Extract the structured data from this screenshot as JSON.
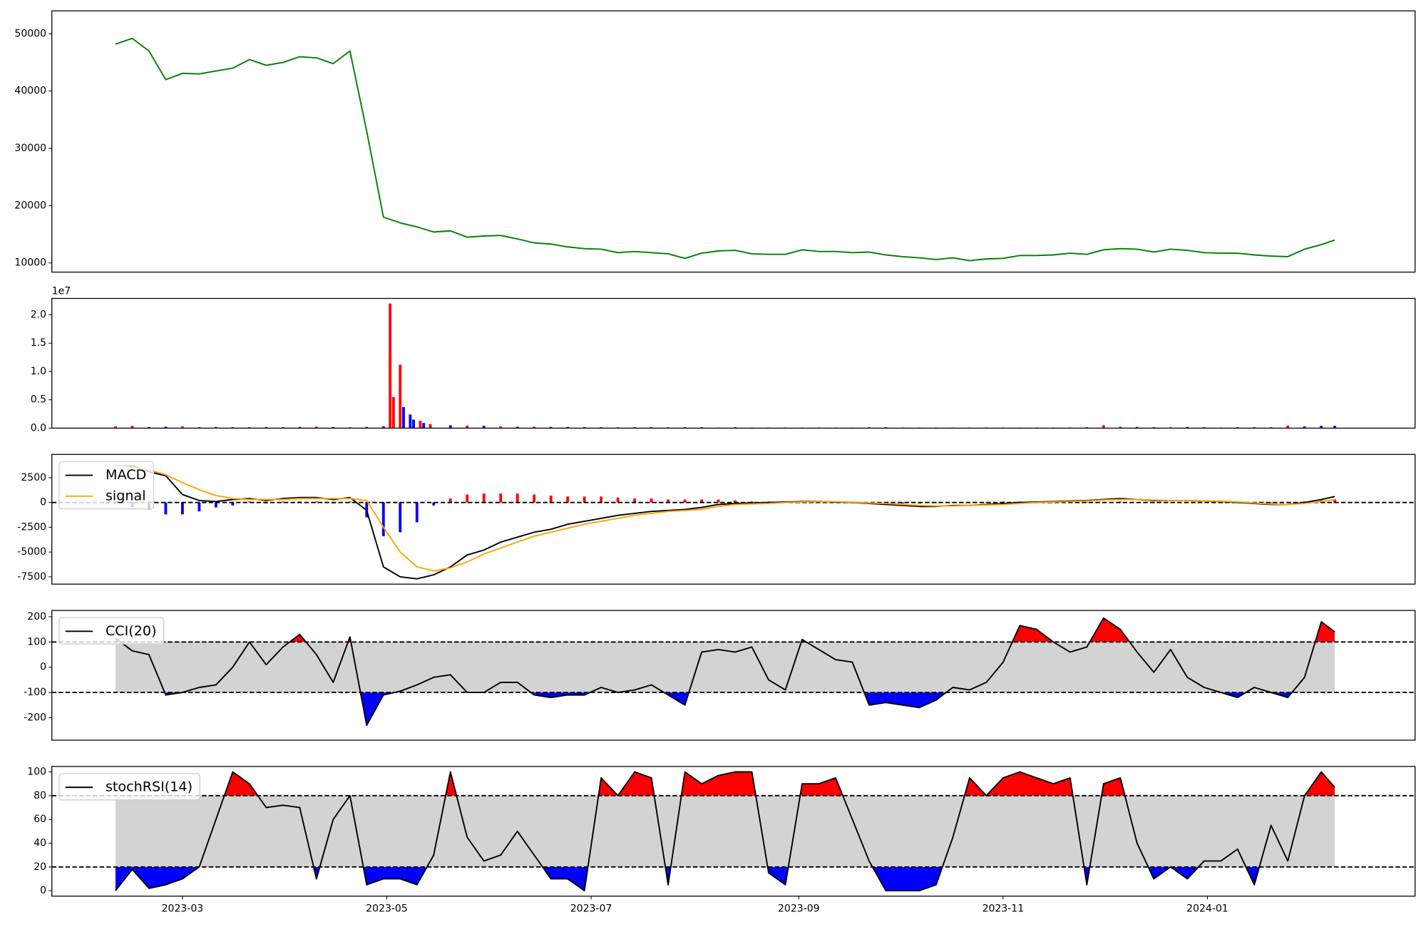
{
  "chart_data": [
    {
      "type": "line",
      "x": [
        19397,
        19402,
        19407,
        19412,
        19417,
        19422,
        19427,
        19432,
        19437,
        19442,
        19447,
        19452,
        19457,
        19462,
        19467,
        19472,
        19477,
        19482,
        19487,
        19492,
        19497,
        19502,
        19507,
        19512,
        19517,
        19522,
        19527,
        19532,
        19537,
        19542,
        19547,
        19552,
        19557,
        19562,
        19567,
        19572,
        19577,
        19582,
        19587,
        19592,
        19597,
        19602,
        19607,
        19612,
        19617,
        19622,
        19627,
        19632,
        19637,
        19642,
        19647,
        19652,
        19657,
        19662,
        19667,
        19672,
        19677,
        19682,
        19687,
        19692,
        19697,
        19702,
        19707,
        19712,
        19717,
        19722,
        19727,
        19732,
        19737,
        19742,
        19747,
        19752,
        19757,
        19761
      ],
      "series": [
        {
          "color": "green",
          "values": [
            48200,
            49200,
            47000,
            42000,
            43100,
            43000,
            43500,
            44000,
            45500,
            44500,
            45000,
            46000,
            45800,
            44800,
            47000,
            33000,
            18000,
            17000,
            16300,
            15400,
            15600,
            14500,
            14700,
            14800,
            14200,
            13500,
            13300,
            12800,
            12500,
            12400,
            11800,
            12000,
            11800,
            11600,
            10800,
            11700,
            12100,
            12200,
            11600,
            11500,
            11500,
            12300,
            12000,
            12000,
            11800,
            11900,
            11400,
            11100,
            10900,
            10600,
            10900,
            10400,
            10700,
            10800,
            11300,
            11300,
            11400,
            11700,
            11500,
            12300,
            12500,
            12400,
            11900,
            12400,
            12200,
            11800,
            11700,
            11700,
            11400,
            11200,
            11100,
            12400,
            13200,
            14000
          ]
        }
      ],
      "xlim": [
        19378,
        19785
      ],
      "ylim": [
        8400,
        54000
      ],
      "yticks": [
        10000,
        20000,
        30000,
        40000,
        50000
      ]
    },
    {
      "type": "bar",
      "x": [
        19397,
        19402,
        19407,
        19412,
        19417,
        19422,
        19427,
        19432,
        19437,
        19442,
        19447,
        19452,
        19457,
        19462,
        19467,
        19472,
        19477,
        19479,
        19480,
        19482,
        19483,
        19485,
        19486,
        19488,
        19489,
        19491,
        19497,
        19502,
        19507,
        19512,
        19517,
        19522,
        19527,
        19532,
        19537,
        19542,
        19547,
        19552,
        19557,
        19562,
        19567,
        19572,
        19577,
        19582,
        19587,
        19592,
        19597,
        19602,
        19607,
        19612,
        19617,
        19622,
        19627,
        19632,
        19637,
        19642,
        19647,
        19652,
        19657,
        19662,
        19667,
        19672,
        19677,
        19682,
        19687,
        19692,
        19697,
        19702,
        19707,
        19712,
        19717,
        19722,
        19727,
        19732,
        19737,
        19742,
        19747,
        19752,
        19757,
        19761
      ],
      "values": [
        300000,
        400000,
        200000,
        250000,
        300000,
        150000,
        200000,
        150000,
        150000,
        200000,
        150000,
        200000,
        250000,
        200000,
        150000,
        200000,
        300000,
        22000000,
        5500000,
        11200000,
        3700000,
        2400000,
        1500000,
        1300000,
        900000,
        700000,
        500000,
        450000,
        400000,
        300000,
        250000,
        250000,
        200000,
        200000,
        200000,
        150000,
        150000,
        150000,
        150000,
        150000,
        150000,
        150000,
        100000,
        150000,
        100000,
        100000,
        100000,
        100000,
        100000,
        100000,
        100000,
        150000,
        150000,
        100000,
        100000,
        100000,
        100000,
        100000,
        100000,
        100000,
        100000,
        100000,
        100000,
        100000,
        150000,
        500000,
        250000,
        200000,
        150000,
        150000,
        200000,
        150000,
        100000,
        150000,
        150000,
        150000,
        450000,
        300000,
        400000,
        400000
      ],
      "colors": [
        "red",
        "red",
        "blue",
        "blue",
        "red",
        "blue",
        "red",
        "blue",
        "blue",
        "red",
        "blue",
        "blue",
        "red",
        "blue",
        "red",
        "blue",
        "blue",
        "red",
        "red",
        "red",
        "blue",
        "blue",
        "blue",
        "red",
        "blue",
        "red",
        "blue",
        "red",
        "blue",
        "red",
        "blue",
        "red",
        "blue",
        "blue",
        "red",
        "blue",
        "red",
        "blue",
        "blue",
        "red",
        "blue",
        "blue",
        "red",
        "blue",
        "red",
        "blue",
        "blue",
        "red",
        "blue",
        "blue",
        "red",
        "red",
        "blue",
        "blue",
        "red",
        "blue",
        "blue",
        "red",
        "blue",
        "blue",
        "red",
        "blue",
        "red",
        "blue",
        "blue",
        "red",
        "red",
        "blue",
        "blue",
        "red",
        "blue",
        "blue",
        "red",
        "blue",
        "blue",
        "red",
        "red",
        "blue",
        "blue",
        "blue"
      ],
      "xlim": [
        19378,
        19785
      ],
      "ylim": [
        0,
        22900000
      ],
      "yticks": [
        {
          "value": 0,
          "label": "0.0"
        },
        {
          "value": 5000000,
          "label": "0.5"
        },
        {
          "value": 10000000,
          "label": "1.0"
        },
        {
          "value": 15000000,
          "label": "1.5"
        },
        {
          "value": 20000000,
          "label": "2.0"
        }
      ],
      "offset_label": "1e7"
    },
    {
      "type": "line",
      "x": [
        19397,
        19402,
        19407,
        19412,
        19417,
        19422,
        19427,
        19432,
        19437,
        19442,
        19447,
        19452,
        19457,
        19462,
        19467,
        19472,
        19477,
        19482,
        19487,
        19492,
        19497,
        19502,
        19507,
        19512,
        19517,
        19522,
        19527,
        19532,
        19537,
        19542,
        19547,
        19552,
        19557,
        19562,
        19567,
        19572,
        19577,
        19582,
        19587,
        19592,
        19597,
        19602,
        19607,
        19612,
        19617,
        19622,
        19627,
        19632,
        19637,
        19642,
        19647,
        19652,
        19657,
        19662,
        19667,
        19672,
        19677,
        19682,
        19687,
        19692,
        19697,
        19702,
        19707,
        19712,
        19717,
        19722,
        19727,
        19732,
        19737,
        19742,
        19747,
        19752,
        19757,
        19761
      ],
      "series": [
        {
          "name": "MACD",
          "color": "black",
          "values": [
            3700,
            3700,
            3100,
            2700,
            800,
            200,
            100,
            300,
            400,
            200,
            400,
            500,
            500,
            300,
            500,
            -800,
            -6500,
            -7500,
            -7700,
            -7300,
            -6500,
            -5300,
            -4800,
            -4000,
            -3500,
            -3000,
            -2700,
            -2200,
            -1900,
            -1600,
            -1300,
            -1100,
            -900,
            -800,
            -700,
            -500,
            -200,
            -100,
            -50,
            0,
            50,
            100,
            100,
            50,
            0,
            -100,
            -200,
            -300,
            -400,
            -400,
            -300,
            -300,
            -200,
            -100,
            0,
            50,
            100,
            150,
            200,
            300,
            400,
            300,
            200,
            200,
            200,
            150,
            100,
            0,
            -100,
            -200,
            -200,
            0,
            300,
            600
          ]
        },
        {
          "name": "signal",
          "color": "orange",
          "values": [
            3800,
            3500,
            3300,
            2800,
            2000,
            1300,
            700,
            400,
            300,
            300,
            300,
            400,
            400,
            400,
            400,
            200,
            -2500,
            -5000,
            -6500,
            -6900,
            -6600,
            -6000,
            -5200,
            -4600,
            -4000,
            -3400,
            -3000,
            -2600,
            -2200,
            -1900,
            -1600,
            -1300,
            -1100,
            -900,
            -800,
            -700,
            -400,
            -200,
            -150,
            -100,
            0,
            50,
            80,
            80,
            30,
            -50,
            -100,
            -200,
            -300,
            -350,
            -350,
            -300,
            -250,
            -200,
            -100,
            0,
            50,
            100,
            150,
            250,
            300,
            300,
            250,
            200,
            200,
            150,
            120,
            50,
            -50,
            -150,
            -200,
            -100,
            100,
            300
          ]
        }
      ],
      "histogram": {
        "positive_color": "red",
        "negative_color": "blue",
        "values": [
          -100,
          -500,
          -700,
          -1200,
          -1200,
          -900,
          -500,
          -300,
          100,
          -100,
          100,
          100,
          100,
          -100,
          100,
          -1500,
          -3400,
          -3000,
          -2000,
          -300,
          400,
          800,
          900,
          900,
          900,
          800,
          700,
          600,
          600,
          600,
          500,
          400,
          400,
          300,
          300,
          300,
          300,
          200,
          100,
          100,
          50,
          50,
          20,
          -30,
          -30,
          -50,
          -100,
          -100,
          -100,
          -50,
          50,
          0,
          50,
          100,
          100,
          50,
          50,
          50,
          50,
          50,
          100,
          0,
          -50,
          0,
          0,
          0,
          -20,
          -50,
          -50,
          -50,
          0,
          100,
          200,
          300
        ]
      },
      "hlines": [
        0
      ],
      "xlim": [
        19378,
        19785
      ],
      "ylim": [
        -8240,
        4850
      ],
      "yticks": [
        -7500,
        -5000,
        -2500,
        0,
        2500
      ],
      "legend": "upper left"
    },
    {
      "type": "band",
      "x": [
        19397,
        19402,
        19407,
        19412,
        19417,
        19422,
        19427,
        19432,
        19437,
        19442,
        19447,
        19452,
        19457,
        19462,
        19467,
        19472,
        19477,
        19482,
        19487,
        19492,
        19497,
        19502,
        19507,
        19512,
        19517,
        19522,
        19527,
        19532,
        19537,
        19542,
        19547,
        19552,
        19557,
        19562,
        19567,
        19572,
        19577,
        19582,
        19587,
        19592,
        19597,
        19602,
        19607,
        19612,
        19617,
        19622,
        19627,
        19632,
        19637,
        19642,
        19647,
        19652,
        19657,
        19662,
        19667,
        19672,
        19677,
        19682,
        19687,
        19692,
        19697,
        19702,
        19707,
        19712,
        19717,
        19722,
        19727,
        19732,
        19737,
        19742,
        19747,
        19752,
        19757,
        19761
      ],
      "series": [
        {
          "name": "CCI(20)",
          "color": "black",
          "values": [
            115,
            65,
            50,
            -110,
            -100,
            -80,
            -70,
            0,
            100,
            10,
            80,
            130,
            50,
            -60,
            120,
            -230,
            -110,
            -95,
            -70,
            -40,
            -30,
            -100,
            -100,
            -60,
            -60,
            -110,
            -120,
            -110,
            -110,
            -80,
            -100,
            -90,
            -70,
            -110,
            -150,
            60,
            70,
            60,
            80,
            -50,
            -90,
            110,
            70,
            30,
            20,
            -150,
            -140,
            -150,
            -160,
            -130,
            -80,
            -90,
            -60,
            20,
            165,
            150,
            100,
            60,
            80,
            195,
            150,
            60,
            -20,
            70,
            -40,
            -80,
            -100,
            -120,
            -80,
            -100,
            -120,
            -40,
            180,
            140
          ]
        }
      ],
      "upper": 100,
      "lower": -100,
      "band_color": "lightgray",
      "upper_color": "red",
      "lower_color": "blue",
      "xlim": [
        19378,
        19785
      ],
      "ylim": [
        -289,
        225
      ],
      "yticks": [
        -200,
        -100,
        0,
        100,
        200
      ],
      "legend": "upper left"
    },
    {
      "type": "band",
      "x": [
        19397,
        19402,
        19407,
        19412,
        19417,
        19422,
        19427,
        19432,
        19437,
        19442,
        19447,
        19452,
        19457,
        19462,
        19467,
        19472,
        19477,
        19482,
        19487,
        19492,
        19497,
        19502,
        19507,
        19512,
        19517,
        19522,
        19527,
        19532,
        19537,
        19542,
        19547,
        19552,
        19557,
        19562,
        19567,
        19572,
        19577,
        19582,
        19587,
        19592,
        19597,
        19602,
        19607,
        19612,
        19617,
        19622,
        19627,
        19632,
        19637,
        19642,
        19647,
        19652,
        19657,
        19662,
        19667,
        19672,
        19677,
        19682,
        19687,
        19692,
        19697,
        19702,
        19707,
        19712,
        19717,
        19722,
        19727,
        19732,
        19737,
        19742,
        19747,
        19752,
        19757,
        19761
      ],
      "series": [
        {
          "name": "stochRSI(14)",
          "color": "black",
          "values": [
            0,
            18,
            2,
            5,
            10,
            20,
            60,
            100,
            90,
            70,
            72,
            70,
            10,
            60,
            80,
            5,
            10,
            10,
            5,
            30,
            100,
            45,
            25,
            30,
            50,
            30,
            10,
            10,
            0,
            95,
            80,
            100,
            95,
            5,
            100,
            90,
            97,
            100,
            100,
            15,
            5,
            90,
            90,
            95,
            60,
            25,
            0,
            0,
            0,
            5,
            45,
            95,
            80,
            95,
            100,
            95,
            90,
            95,
            5,
            90,
            95,
            40,
            10,
            20,
            10,
            25,
            25,
            35,
            5,
            55,
            25,
            80,
            100,
            87
          ]
        }
      ],
      "upper": 80,
      "lower": 20,
      "band_color": "lightgray",
      "upper_color": "red",
      "lower_color": "blue",
      "xlim": [
        19378,
        19785
      ],
      "ylim": [
        -4.6,
        104.6
      ],
      "yticks": [
        0,
        20,
        40,
        60,
        80,
        100
      ],
      "xticks": [
        {
          "value": 19417,
          "label": "2023-03"
        },
        {
          "value": 19478,
          "label": "2023-05"
        },
        {
          "value": 19539,
          "label": "2023-07"
        },
        {
          "value": 19601,
          "label": "2023-09"
        },
        {
          "value": 19662,
          "label": "2023-11"
        },
        {
          "value": 19723,
          "label": "2024-01"
        }
      ],
      "legend": "upper left"
    }
  ]
}
